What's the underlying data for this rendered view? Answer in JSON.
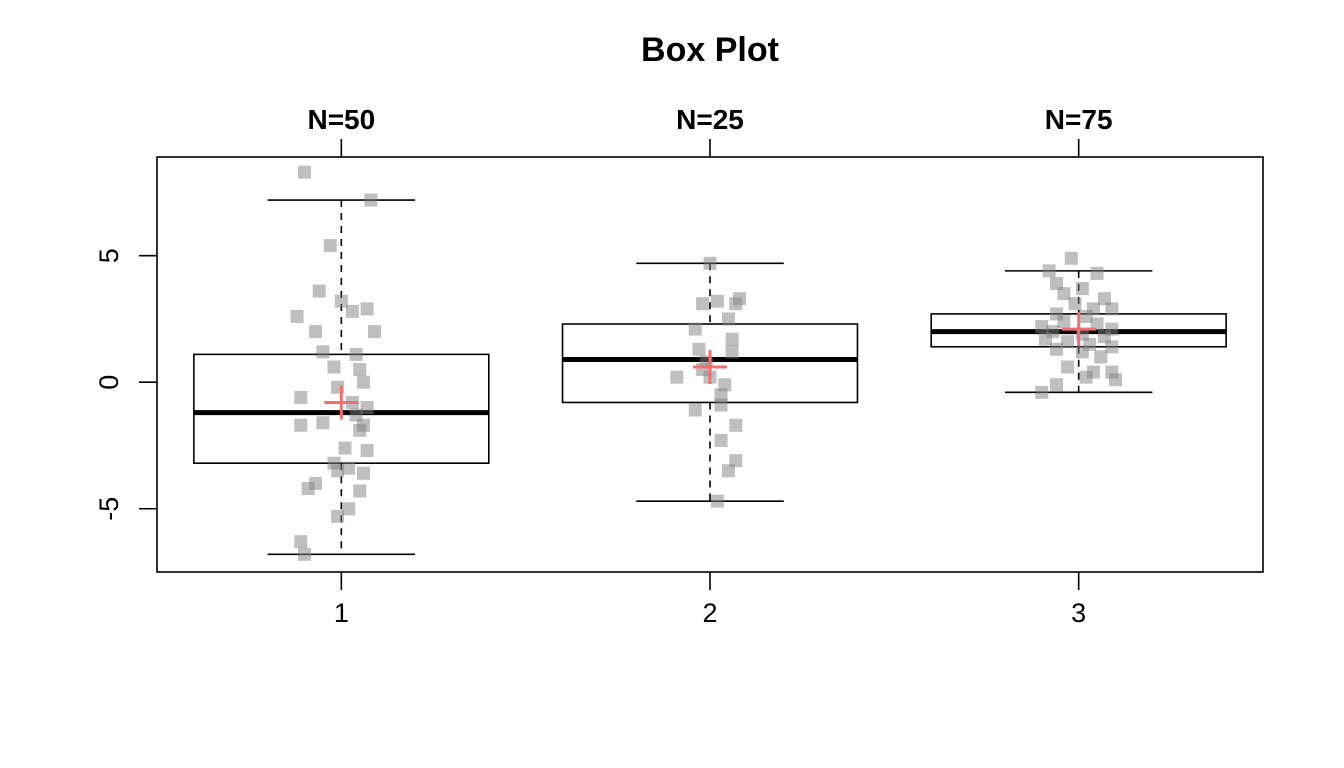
{
  "chart_data": {
    "type": "box",
    "title": "Box Plot",
    "xlabel": "",
    "ylabel": "",
    "categories": [
      "1",
      "2",
      "3"
    ],
    "top_labels": [
      "N=50",
      "N=25",
      "N=75"
    ],
    "y_ticks": [
      -5,
      0,
      5
    ],
    "y_tick_labels": [
      "-5",
      "0",
      "5"
    ],
    "ylim": [
      -7.5,
      8.9
    ],
    "xlim": [
      0.5,
      3.5
    ],
    "grid": false,
    "legend": "none",
    "colors": {
      "box": "#000000",
      "points": "#808080",
      "mean": "#f07070"
    },
    "groups": [
      {
        "name": "1",
        "whisker_low": -6.8,
        "q1": -3.2,
        "median": -1.2,
        "q3": 1.1,
        "whisker_high": 7.2,
        "mean": -0.8,
        "points": [
          [
            0.9,
            8.3
          ],
          [
            1.08,
            7.2
          ],
          [
            0.97,
            5.4
          ],
          [
            0.94,
            3.6
          ],
          [
            1.0,
            3.2
          ],
          [
            1.07,
            2.9
          ],
          [
            1.03,
            2.8
          ],
          [
            0.88,
            2.6
          ],
          [
            0.93,
            2.0
          ],
          [
            1.09,
            2.0
          ],
          [
            0.95,
            1.2
          ],
          [
            1.04,
            1.1
          ],
          [
            1.05,
            0.5
          ],
          [
            0.98,
            0.6
          ],
          [
            1.06,
            0.0
          ],
          [
            0.99,
            -0.2
          ],
          [
            0.89,
            -0.6
          ],
          [
            1.03,
            -0.8
          ],
          [
            1.07,
            -1.0
          ],
          [
            1.04,
            -1.3
          ],
          [
            0.95,
            -1.6
          ],
          [
            0.89,
            -1.7
          ],
          [
            1.06,
            -1.7
          ],
          [
            1.05,
            -1.9
          ],
          [
            1.01,
            -2.6
          ],
          [
            1.07,
            -2.7
          ],
          [
            0.98,
            -3.2
          ],
          [
            0.99,
            -3.5
          ],
          [
            1.02,
            -3.4
          ],
          [
            1.06,
            -3.6
          ],
          [
            0.93,
            -4.0
          ],
          [
            0.91,
            -4.2
          ],
          [
            1.05,
            -4.3
          ],
          [
            1.02,
            -5.0
          ],
          [
            0.99,
            -5.3
          ],
          [
            0.89,
            -6.3
          ],
          [
            0.9,
            -6.8
          ]
        ]
      },
      {
        "name": "2",
        "whisker_low": -4.7,
        "q1": -0.8,
        "median": 0.9,
        "q3": 2.3,
        "whisker_high": 4.7,
        "mean": 0.6,
        "points": [
          [
            2.0,
            4.7
          ],
          [
            2.08,
            3.3
          ],
          [
            2.07,
            3.1
          ],
          [
            1.98,
            3.1
          ],
          [
            2.02,
            3.2
          ],
          [
            2.05,
            2.5
          ],
          [
            1.96,
            2.1
          ],
          [
            2.06,
            1.7
          ],
          [
            1.97,
            1.3
          ],
          [
            2.06,
            1.2
          ],
          [
            1.99,
            0.8
          ],
          [
            1.98,
            0.5
          ],
          [
            2.0,
            0.2
          ],
          [
            1.91,
            0.2
          ],
          [
            2.04,
            -0.1
          ],
          [
            2.03,
            -0.5
          ],
          [
            2.03,
            -0.9
          ],
          [
            1.96,
            -1.1
          ],
          [
            2.07,
            -1.7
          ],
          [
            2.03,
            -2.3
          ],
          [
            2.07,
            -3.1
          ],
          [
            2.05,
            -3.5
          ],
          [
            2.02,
            -4.7
          ]
        ]
      },
      {
        "name": "3",
        "whisker_low": -0.4,
        "q1": 1.4,
        "median": 2.0,
        "q3": 2.7,
        "whisker_high": 4.4,
        "mean": 2.1,
        "points": [
          [
            2.98,
            4.9
          ],
          [
            2.92,
            4.4
          ],
          [
            3.05,
            4.3
          ],
          [
            2.94,
            3.9
          ],
          [
            3.01,
            3.7
          ],
          [
            2.96,
            3.5
          ],
          [
            3.07,
            3.3
          ],
          [
            2.99,
            3.1
          ],
          [
            3.04,
            2.9
          ],
          [
            3.09,
            2.9
          ],
          [
            2.94,
            2.7
          ],
          [
            3.02,
            2.6
          ],
          [
            2.96,
            2.4
          ],
          [
            3.05,
            2.3
          ],
          [
            2.9,
            2.2
          ],
          [
            3.09,
            2.1
          ],
          [
            2.93,
            2.0
          ],
          [
            3.01,
            1.9
          ],
          [
            3.07,
            1.8
          ],
          [
            2.91,
            1.7
          ],
          [
            2.97,
            1.6
          ],
          [
            3.03,
            1.5
          ],
          [
            3.09,
            1.4
          ],
          [
            2.94,
            1.3
          ],
          [
            3.01,
            1.2
          ],
          [
            3.06,
            1.0
          ],
          [
            2.97,
            0.6
          ],
          [
            3.04,
            0.4
          ],
          [
            3.09,
            0.4
          ],
          [
            3.02,
            0.2
          ],
          [
            3.1,
            0.1
          ],
          [
            2.94,
            -0.1
          ],
          [
            2.9,
            -0.4
          ]
        ]
      }
    ]
  }
}
